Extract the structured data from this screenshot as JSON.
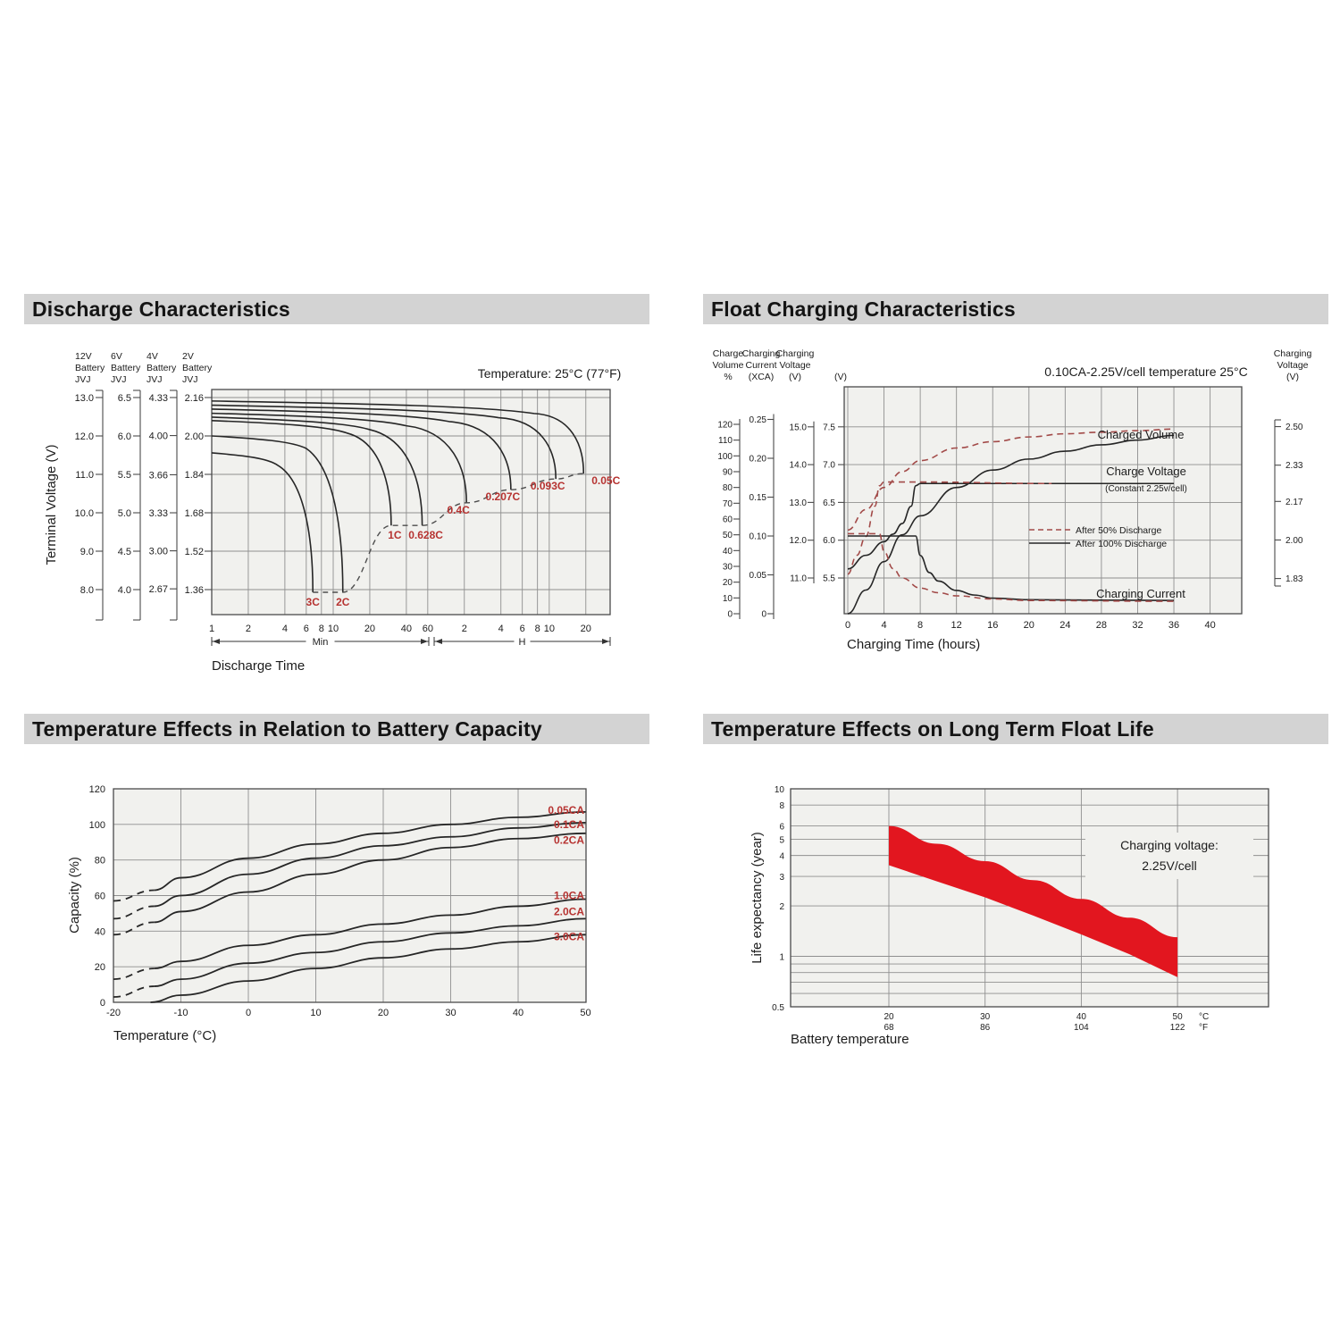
{
  "colors": {
    "header_bar": "#d3d3d3",
    "title_text": "#141414",
    "plot_bg": "#f1f1ee",
    "grid": "#8f8f8f",
    "axis": "#4a4a4a",
    "curve": "#262626",
    "red_label": "#b63331",
    "red_dashed": "#a24a48",
    "band_red": "#e2161f"
  },
  "sections": [
    {
      "title": "Discharge Characteristics"
    },
    {
      "title": "Float Charging Characteristics"
    },
    {
      "title": "Temperature Effects in Relation to Battery Capacity"
    },
    {
      "title": "Temperature Effects on Long Term Float Life"
    }
  ],
  "chart_data": [
    {
      "id": "discharge_characteristics",
      "type": "line",
      "title": "Discharge Characteristics",
      "annotation": "Temperature: 25°C (77°F)",
      "xlabel": "Discharge Time",
      "ylabel": "Terminal Voltage (V)",
      "x_axis": {
        "minute_ticks": [
          1,
          2,
          4,
          6,
          8,
          10,
          20,
          40,
          60
        ],
        "hour_ticks": [
          2,
          4,
          6,
          8,
          10,
          20
        ],
        "range_labels": [
          "Min",
          "H"
        ]
      },
      "voltage_scales": [
        {
          "header": [
            "12V",
            "Battery",
            "JVJ"
          ],
          "ticks": [
            "13.0",
            "12.0",
            "11.0",
            "10.0",
            "9.0",
            "8.0"
          ]
        },
        {
          "header": [
            "6V",
            "Battery",
            "JVJ"
          ],
          "ticks": [
            "6.5",
            "6.0",
            "5.5",
            "5.0",
            "4.5",
            "4.0"
          ]
        },
        {
          "header": [
            "4V",
            "Battery",
            "JVJ"
          ],
          "ticks": [
            "4.33",
            "4.00",
            "3.66",
            "3.33",
            "3.00",
            "2.67"
          ]
        },
        {
          "header": [
            "2V",
            "Battery",
            "JVJ"
          ],
          "ticks": [
            "2.16",
            "2.00",
            "1.84",
            "1.68",
            "1.52",
            "1.36"
          ]
        }
      ],
      "curves": [
        {
          "label": "3C",
          "start_v": 11.56,
          "knee_min": 3.5,
          "end_min": 6.8,
          "end_v": 7.93,
          "label_pos": "bottom"
        },
        {
          "label": "2C",
          "start_v": 12.0,
          "knee_min": 6,
          "end_min": 12,
          "end_v": 7.93,
          "label_pos": "bottom"
        },
        {
          "label": "1C",
          "start_v": 12.4,
          "knee_min": 13,
          "end_min": 30,
          "end_v": 9.67,
          "label_pos": "below"
        },
        {
          "label": "0.628C",
          "start_v": 12.49,
          "knee_min": 20,
          "end_min": 54,
          "end_v": 9.67,
          "label_pos": "below"
        },
        {
          "label": "0.4C",
          "start_v": 12.59,
          "knee_min": 40,
          "end_min": 125,
          "end_v": 10.26,
          "label_pos": "belowleft"
        },
        {
          "label": "0.207C",
          "start_v": 12.7,
          "knee_min": 90,
          "end_min": 290,
          "end_v": 10.6,
          "label_pos": "belowleft"
        },
        {
          "label": "0.093C",
          "start_v": 12.8,
          "knee_min": 230,
          "end_min": 680,
          "end_v": 10.88,
          "label_pos": "belowleft"
        },
        {
          "label": "0.05C",
          "start_v": 12.91,
          "knee_min": 450,
          "end_min": 1150,
          "end_v": 11.02,
          "label_pos": "right"
        }
      ]
    },
    {
      "id": "float_charging_characteristics",
      "type": "line",
      "title": "Float Charging Characteristics",
      "annotation": "0.10CA-2.25V/cell  temperature 25°C",
      "xlabel": "Charging Time (hours)",
      "x_ticks": [
        0,
        4,
        8,
        12,
        16,
        20,
        24,
        28,
        32,
        36,
        40
      ],
      "left_scales": [
        {
          "header": [
            "Charge",
            "Volume",
            "%"
          ],
          "ticks": [
            "120",
            "110",
            "100",
            "90",
            "80",
            "70",
            "60",
            "50",
            "40",
            "30",
            "20",
            "10",
            "0"
          ]
        },
        {
          "header": [
            "Charging",
            "Current",
            "(XCA)"
          ],
          "ticks": [
            "0.25",
            "0.20",
            "0.15",
            "0.10",
            "0.05",
            "0"
          ]
        },
        {
          "header": [
            "Charging",
            "Voltage",
            "(V)"
          ],
          "ticks": [
            "15.0",
            "14.0",
            "13.0",
            "12.0",
            "11.0"
          ]
        },
        {
          "header": [
            "(V)"
          ],
          "ticks": [
            "7.5",
            "7.0",
            "6.5",
            "6.0",
            "5.5"
          ]
        }
      ],
      "right_scale": {
        "header": [
          "Charging",
          "Voltage",
          "(V)"
        ],
        "ticks": [
          "2.50",
          "2.33",
          "2.17",
          "2.00",
          "1.83"
        ]
      },
      "inline_labels": {
        "charged_volume": "Charged Volume",
        "charge_voltage": "Charge Voltage",
        "charge_voltage_sub": "(Constant 2.25v/cell)",
        "charging_current": "Charging Current"
      },
      "legend": [
        {
          "label": "After  50% Discharge",
          "style": "dashed"
        },
        {
          "label": "After 100% Discharge",
          "style": "solid"
        }
      ],
      "series": [
        {
          "name": "charged_volume_after_100pct",
          "axis": "volume",
          "style": "solid",
          "points": [
            [
              0,
              0
            ],
            [
              2,
              15
            ],
            [
              4,
              33
            ],
            [
              6,
              50
            ],
            [
              8,
              62
            ],
            [
              12,
              80
            ],
            [
              16,
              91
            ],
            [
              20,
              98
            ],
            [
              24,
              103
            ],
            [
              28,
              107
            ],
            [
              32,
              110
            ],
            [
              36,
              113
            ]
          ]
        },
        {
          "name": "charged_volume_after_50pct",
          "axis": "volume",
          "style": "dashed",
          "points": [
            [
              0,
              53
            ],
            [
              2,
              66
            ],
            [
              4,
              80
            ],
            [
              6,
              90
            ],
            [
              8,
              97
            ],
            [
              12,
              105
            ],
            [
              16,
              109
            ],
            [
              20,
              112
            ],
            [
              24,
              114
            ],
            [
              28,
              115
            ],
            [
              32,
              116
            ],
            [
              36,
              117
            ]
          ]
        },
        {
          "name": "charge_voltage_after_100pct",
          "axis": "v6",
          "style": "solid",
          "points": [
            [
              0,
              5.62
            ],
            [
              2,
              5.8
            ],
            [
              4,
              5.98
            ],
            [
              5,
              6.08
            ],
            [
              6,
              6.22
            ],
            [
              7,
              6.45
            ],
            [
              7.5,
              6.72
            ],
            [
              8,
              6.75
            ],
            [
              36,
              6.75
            ]
          ]
        },
        {
          "name": "charge_voltage_after_50pct",
          "axis": "v6",
          "style": "dashed",
          "points": [
            [
              0,
              5.55
            ],
            [
              1,
              5.8
            ],
            [
              2,
              6.05
            ],
            [
              3,
              6.45
            ],
            [
              3.5,
              6.72
            ],
            [
              4,
              6.77
            ],
            [
              8,
              6.77
            ],
            [
              22.5,
              6.75
            ]
          ]
        },
        {
          "name": "charging_current_after_100pct",
          "axis": "xca",
          "style": "solid",
          "points": [
            [
              0,
              0.1
            ],
            [
              7.5,
              0.1
            ],
            [
              8,
              0.075
            ],
            [
              9,
              0.053
            ],
            [
              10,
              0.042
            ],
            [
              12,
              0.03
            ],
            [
              14,
              0.024
            ],
            [
              16,
              0.02
            ],
            [
              20,
              0.018
            ],
            [
              36,
              0.017
            ]
          ]
        },
        {
          "name": "charging_current_after_50pct",
          "axis": "xca",
          "style": "dashed",
          "points": [
            [
              0,
              0.103
            ],
            [
              3.5,
              0.103
            ],
            [
              4,
              0.08
            ],
            [
              5,
              0.058
            ],
            [
              6,
              0.046
            ],
            [
              8,
              0.033
            ],
            [
              10,
              0.027
            ],
            [
              12,
              0.023
            ],
            [
              16,
              0.019
            ],
            [
              20,
              0.017
            ],
            [
              36,
              0.016
            ]
          ]
        }
      ]
    },
    {
      "id": "temperature_effects_battery_capacity",
      "type": "line",
      "title": "Temperature Effects in Relation to Battery Capacity",
      "xlabel": "Temperature (°C)",
      "ylabel": "Capacity (%)",
      "x_ticks": [
        -20,
        -10,
        0,
        10,
        20,
        30,
        40,
        50
      ],
      "y_ticks": [
        0,
        20,
        40,
        60,
        80,
        100,
        120
      ],
      "series": [
        {
          "label": "0.05CA",
          "label_y": 106,
          "dashed": [
            [
              -20,
              57
            ],
            [
              -14,
              63
            ]
          ],
          "solid": [
            [
              -14,
              63
            ],
            [
              -10,
              70
            ],
            [
              0,
              81
            ],
            [
              10,
              89
            ],
            [
              20,
              95
            ],
            [
              30,
              100
            ],
            [
              40,
              104
            ],
            [
              50,
              107
            ]
          ]
        },
        {
          "label": "0.1CA",
          "label_y": 98,
          "dashed": [
            [
              -20,
              47
            ],
            [
              -14,
              54
            ]
          ],
          "solid": [
            [
              -14,
              54
            ],
            [
              -10,
              60
            ],
            [
              0,
              72
            ],
            [
              10,
              81
            ],
            [
              20,
              88
            ],
            [
              30,
              93
            ],
            [
              40,
              98
            ],
            [
              50,
              101
            ]
          ]
        },
        {
          "label": "0.2CA",
          "label_y": 89,
          "dashed": [
            [
              -20,
              38
            ],
            [
              -14,
              45
            ]
          ],
          "solid": [
            [
              -14,
              45
            ],
            [
              -10,
              51
            ],
            [
              0,
              62
            ],
            [
              10,
              72
            ],
            [
              20,
              80
            ],
            [
              30,
              87
            ],
            [
              40,
              92
            ],
            [
              50,
              95
            ]
          ]
        },
        {
          "label": "1.0CA",
          "label_y": 58,
          "dashed": [
            [
              -20,
              13
            ],
            [
              -14,
              19
            ]
          ],
          "solid": [
            [
              -14,
              19
            ],
            [
              -10,
              23
            ],
            [
              0,
              32
            ],
            [
              10,
              38
            ],
            [
              20,
              44
            ],
            [
              30,
              49
            ],
            [
              40,
              54
            ],
            [
              50,
              58
            ]
          ]
        },
        {
          "label": "2.0CA",
          "label_y": 49,
          "dashed": [
            [
              -20,
              3
            ],
            [
              -14,
              9
            ]
          ],
          "solid": [
            [
              -14,
              9
            ],
            [
              -10,
              13
            ],
            [
              0,
              22
            ],
            [
              10,
              28
            ],
            [
              20,
              34
            ],
            [
              30,
              39
            ],
            [
              40,
              43
            ],
            [
              50,
              47
            ]
          ]
        },
        {
          "label": "3.0CA",
          "label_y": 35,
          "dashed": [],
          "solid": [
            [
              -14.5,
              0
            ],
            [
              -10,
              4
            ],
            [
              0,
              12
            ],
            [
              10,
              19
            ],
            [
              20,
              25
            ],
            [
              30,
              30
            ],
            [
              40,
              34
            ],
            [
              50,
              38
            ]
          ]
        }
      ]
    },
    {
      "id": "temperature_effects_float_life",
      "type": "band",
      "title": "Temperature Effects on Long Term Float Life",
      "xlabel": "Battery temperature",
      "ylabel": "Life expectancy (year)",
      "y_ticks": [
        10,
        8,
        6,
        5,
        4,
        3,
        2,
        1,
        0.5
      ],
      "y_minor_gridlines": [
        0.9,
        0.8,
        0.7,
        0.6
      ],
      "x_ticks": [
        {
          "celsius": "20",
          "fahrenheit": "68"
        },
        {
          "celsius": "30",
          "fahrenheit": "86"
        },
        {
          "celsius": "40",
          "fahrenheit": "104"
        },
        {
          "celsius": "50",
          "fahrenheit": "122"
        }
      ],
      "unit_labels": {
        "celsius": "°C",
        "fahrenheit": "°F"
      },
      "annotation": [
        "Charging voltage:",
        "2.25V/cell"
      ],
      "band": {
        "top": [
          [
            20,
            6.0
          ],
          [
            25,
            4.7
          ],
          [
            30,
            3.7
          ],
          [
            35,
            2.85
          ],
          [
            40,
            2.2
          ],
          [
            45,
            1.7
          ],
          [
            50,
            1.3
          ]
        ],
        "bottom": [
          [
            20,
            3.5
          ],
          [
            25,
            2.8
          ],
          [
            30,
            2.25
          ],
          [
            35,
            1.75
          ],
          [
            40,
            1.35
          ],
          [
            45,
            1.03
          ],
          [
            50,
            0.75
          ]
        ]
      }
    }
  ]
}
